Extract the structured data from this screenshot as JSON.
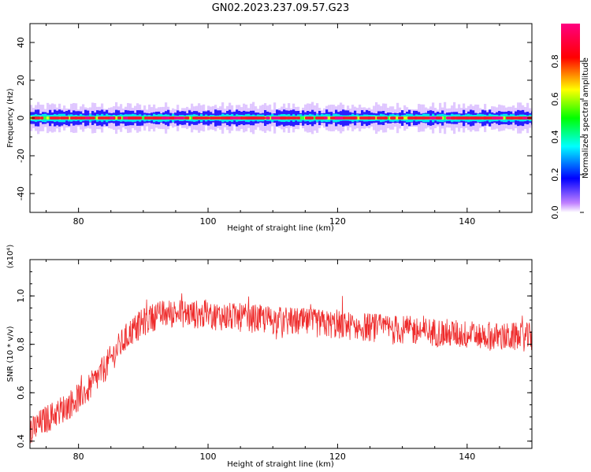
{
  "title": "GN02.2023.237.09.57.G23",
  "chart_data": [
    {
      "type": "heatmap",
      "xlabel": "Height of straight line (km)",
      "ylabel": "Frequency (Hz)",
      "xlim": [
        72.5,
        150
      ],
      "ylim": [
        -50,
        50
      ],
      "xticks": [
        80,
        100,
        120,
        140
      ],
      "yticks": [
        -40,
        -20,
        0,
        20,
        40
      ],
      "band_center_hz": 0,
      "band_halfwidth_hz": 5,
      "colorbar": {
        "label": "Normalized spectral amplitude",
        "ticks": [
          0.0,
          0.2,
          0.4,
          0.6,
          0.8
        ],
        "range": [
          0,
          1
        ],
        "colors": [
          "#ffffff",
          "#c080ff",
          "#0000ff",
          "#00ffff",
          "#00ff00",
          "#ffff00",
          "#ff0000",
          "#ff0080"
        ]
      }
    },
    {
      "type": "line",
      "xlabel": "Height of straight line (km)",
      "ylabel": "SNR (10 * v/v)",
      "scale_note": "(x10⁴)",
      "xlim": [
        72.5,
        150
      ],
      "ylim": [
        0.37,
        1.15
      ],
      "xticks": [
        80,
        100,
        120,
        140
      ],
      "yticks": [
        0.4,
        0.6,
        0.8,
        1.0
      ],
      "ytick_labels": [
        "0.4",
        "0.6",
        "0.8",
        "1.0"
      ],
      "series": [
        {
          "color": "#ee2a2a",
          "trend": {
            "x": [
              72.5,
              75,
              78,
              80,
              82,
              84,
              86,
              88,
              90,
              92,
              95,
              100,
              105,
              110,
              115,
              120,
              125,
              130,
              135,
              140,
              145,
              150
            ],
            "y": [
              0.44,
              0.49,
              0.54,
              0.58,
              0.63,
              0.7,
              0.78,
              0.85,
              0.89,
              0.92,
              0.93,
              0.92,
              0.91,
              0.9,
              0.89,
              0.88,
              0.87,
              0.86,
              0.85,
              0.84,
              0.83,
              0.83
            ]
          },
          "noise_amplitude": 0.06
        }
      ]
    }
  ]
}
